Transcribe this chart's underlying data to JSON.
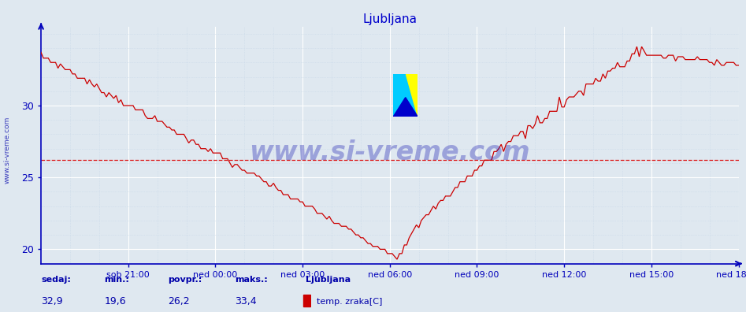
{
  "title": "Ljubljana",
  "title_color": "#0000cc",
  "title_fontsize": 11,
  "bg_color": "#dfe8f0",
  "plot_bg_color": "#dfe8f0",
  "line_color": "#cc0000",
  "grid_color_major": "#ffffff",
  "grid_color_minor": "#c8d8e8",
  "axis_color": "#0000bb",
  "tick_label_color": "#0000bb",
  "watermark_text": "www.si-vreme.com",
  "watermark_color": "#0000aa",
  "ymin": 19.0,
  "ymax": 35.5,
  "yticks": [
    20,
    25,
    30
  ],
  "avg_line": 26.2,
  "avg_line_color": "#dd0000",
  "x_labels": [
    "sob 21:00",
    "ned 00:00",
    "ned 03:00",
    "ned 06:00",
    "ned 09:00",
    "ned 12:00",
    "ned 15:00",
    "ned 18:00"
  ],
  "footer_labels": [
    "sedaj:",
    "min.:",
    "povpr.:",
    "maks.:"
  ],
  "footer_values": [
    "32,9",
    "19,6",
    "26,2",
    "33,4"
  ],
  "footer_series_name": "Ljubljana",
  "footer_series_label": "temp. zraka[C]",
  "footer_color": "#0000aa",
  "sidebar_text": "www.si-vreme.com",
  "sidebar_color": "#0000aa"
}
